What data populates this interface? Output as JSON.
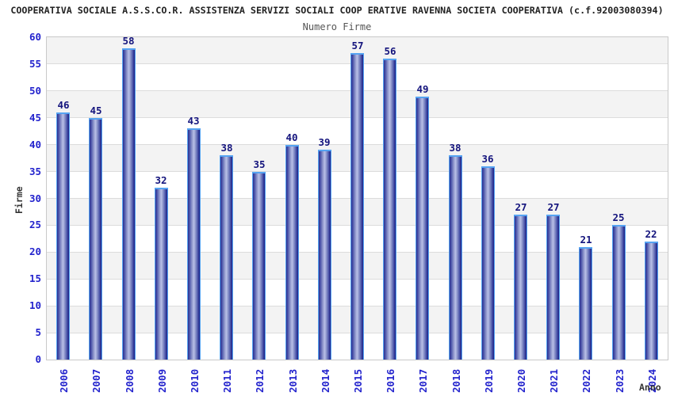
{
  "header": {
    "title": "COOPERATIVA SOCIALE A.S.S.CO.R. ASSISTENZA SERVIZI SOCIALI COOP ERATIVE RAVENNA SOCIETA COOPERATIVA (c.f.92003080394)",
    "subtitle": "Numero Firme"
  },
  "chart_data": {
    "type": "bar",
    "title": "Numero Firme",
    "xlabel": "Anno",
    "ylabel": "Firme",
    "categories": [
      "2006",
      "2007",
      "2008",
      "2009",
      "2010",
      "2011",
      "2012",
      "2013",
      "2014",
      "2015",
      "2016",
      "2017",
      "2018",
      "2019",
      "2020",
      "2021",
      "2022",
      "2023",
      "2024"
    ],
    "values": [
      46,
      45,
      58,
      32,
      43,
      38,
      35,
      40,
      39,
      57,
      56,
      49,
      38,
      36,
      27,
      27,
      21,
      25,
      22
    ],
    "ylim": [
      0,
      60
    ],
    "ytick_step": 5,
    "grid": true,
    "legend_position": "none",
    "band_colors": [
      "#ffffff",
      "#f3f3f3"
    ],
    "colors": {
      "tick_label": "#2323cd",
      "value_label": "#14147d",
      "bar_edge": "#55a3f2",
      "bar_dark": "#2a3191",
      "bar_light": "#b9c0e7",
      "axis_text": "#333333",
      "title_text": "#222222",
      "subtitle_text": "#555555",
      "gridline": "#dcdcdc",
      "plot_border": "#c9c9c9"
    }
  }
}
